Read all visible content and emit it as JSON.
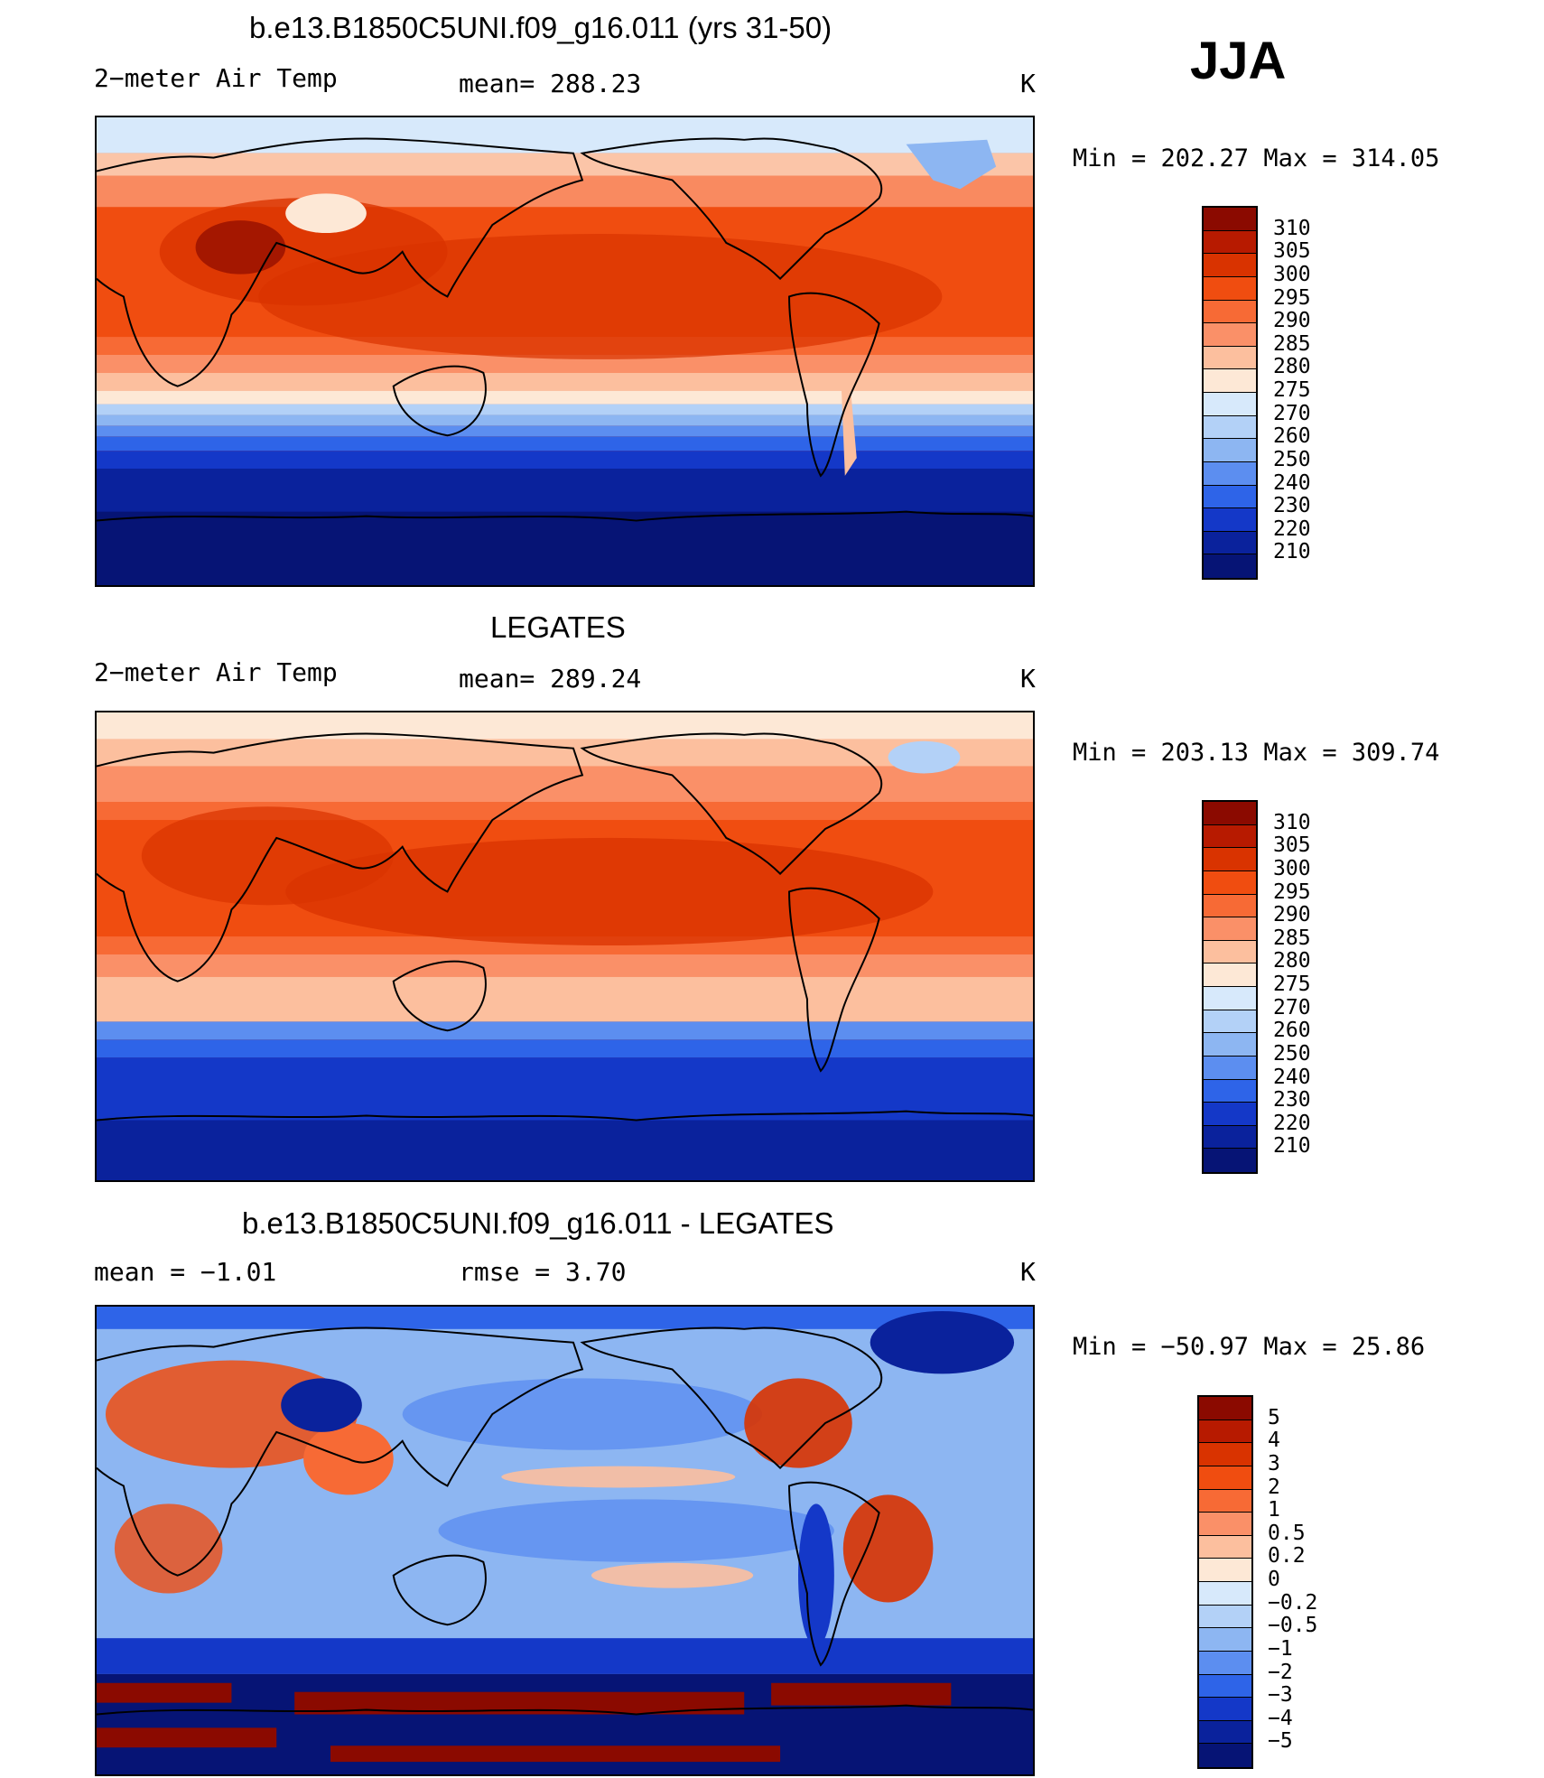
{
  "season": "JJA",
  "units": "K",
  "panels": [
    {
      "title": "b.e13.B1850C5UNI.f09_g16.011 (yrs 31-50)",
      "left_label": "2−meter Air Temp",
      "center_label": "mean=  288.23",
      "right_label": "K",
      "minmax": "Min  =  202.27  Max  =  314.05",
      "colorbar": {
        "levels": [
          "310",
          "305",
          "300",
          "295",
          "290",
          "285",
          "280",
          "275",
          "270",
          "260",
          "250",
          "240",
          "230",
          "220",
          "210"
        ],
        "colors": [
          "#8b0a00",
          "#b71a00",
          "#d93300",
          "#f04d10",
          "#f76a35",
          "#fa9068",
          "#fcbf9e",
          "#fde8d6",
          "#d7e9fb",
          "#b3d1f7",
          "#8db6f2",
          "#5c8ef0",
          "#2e64e8",
          "#1438c8",
          "#0a229c",
          "#061475"
        ]
      }
    },
    {
      "title": "LEGATES",
      "left_label": "2−meter Air Temp",
      "center_label": "mean=  289.24",
      "right_label": "K",
      "minmax": "Min  =  203.13  Max  =  309.74",
      "colorbar": {
        "levels": [
          "310",
          "305",
          "300",
          "295",
          "290",
          "285",
          "280",
          "275",
          "270",
          "260",
          "250",
          "240",
          "230",
          "220",
          "210"
        ],
        "colors": [
          "#8b0a00",
          "#b71a00",
          "#d93300",
          "#f04d10",
          "#f76a35",
          "#fa9068",
          "#fcbf9e",
          "#fde8d6",
          "#d7e9fb",
          "#b3d1f7",
          "#8db6f2",
          "#5c8ef0",
          "#2e64e8",
          "#1438c8",
          "#0a229c",
          "#061475"
        ]
      }
    },
    {
      "title": "b.e13.B1850C5UNI.f09_g16.011 - LEGATES",
      "left_label": "mean =    −1.01",
      "center_label": "rmse =     3.70",
      "right_label": "K",
      "minmax": "Min  =  −50.97  Max  =    25.86",
      "colorbar": {
        "levels": [
          "5",
          "4",
          "3",
          "2",
          "1",
          "0.5",
          "0.2",
          "0",
          "−0.2",
          "−0.5",
          "−1",
          "−2",
          "−3",
          "−4",
          "−5"
        ],
        "colors": [
          "#8b0a00",
          "#b71a00",
          "#d93300",
          "#f04d10",
          "#f76a35",
          "#fa9068",
          "#fcbf9e",
          "#fde8d6",
          "#d7e9fb",
          "#b3d1f7",
          "#8db6f2",
          "#5c8ef0",
          "#2e64e8",
          "#1438c8",
          "#0a229c",
          "#061475"
        ]
      }
    }
  ]
}
